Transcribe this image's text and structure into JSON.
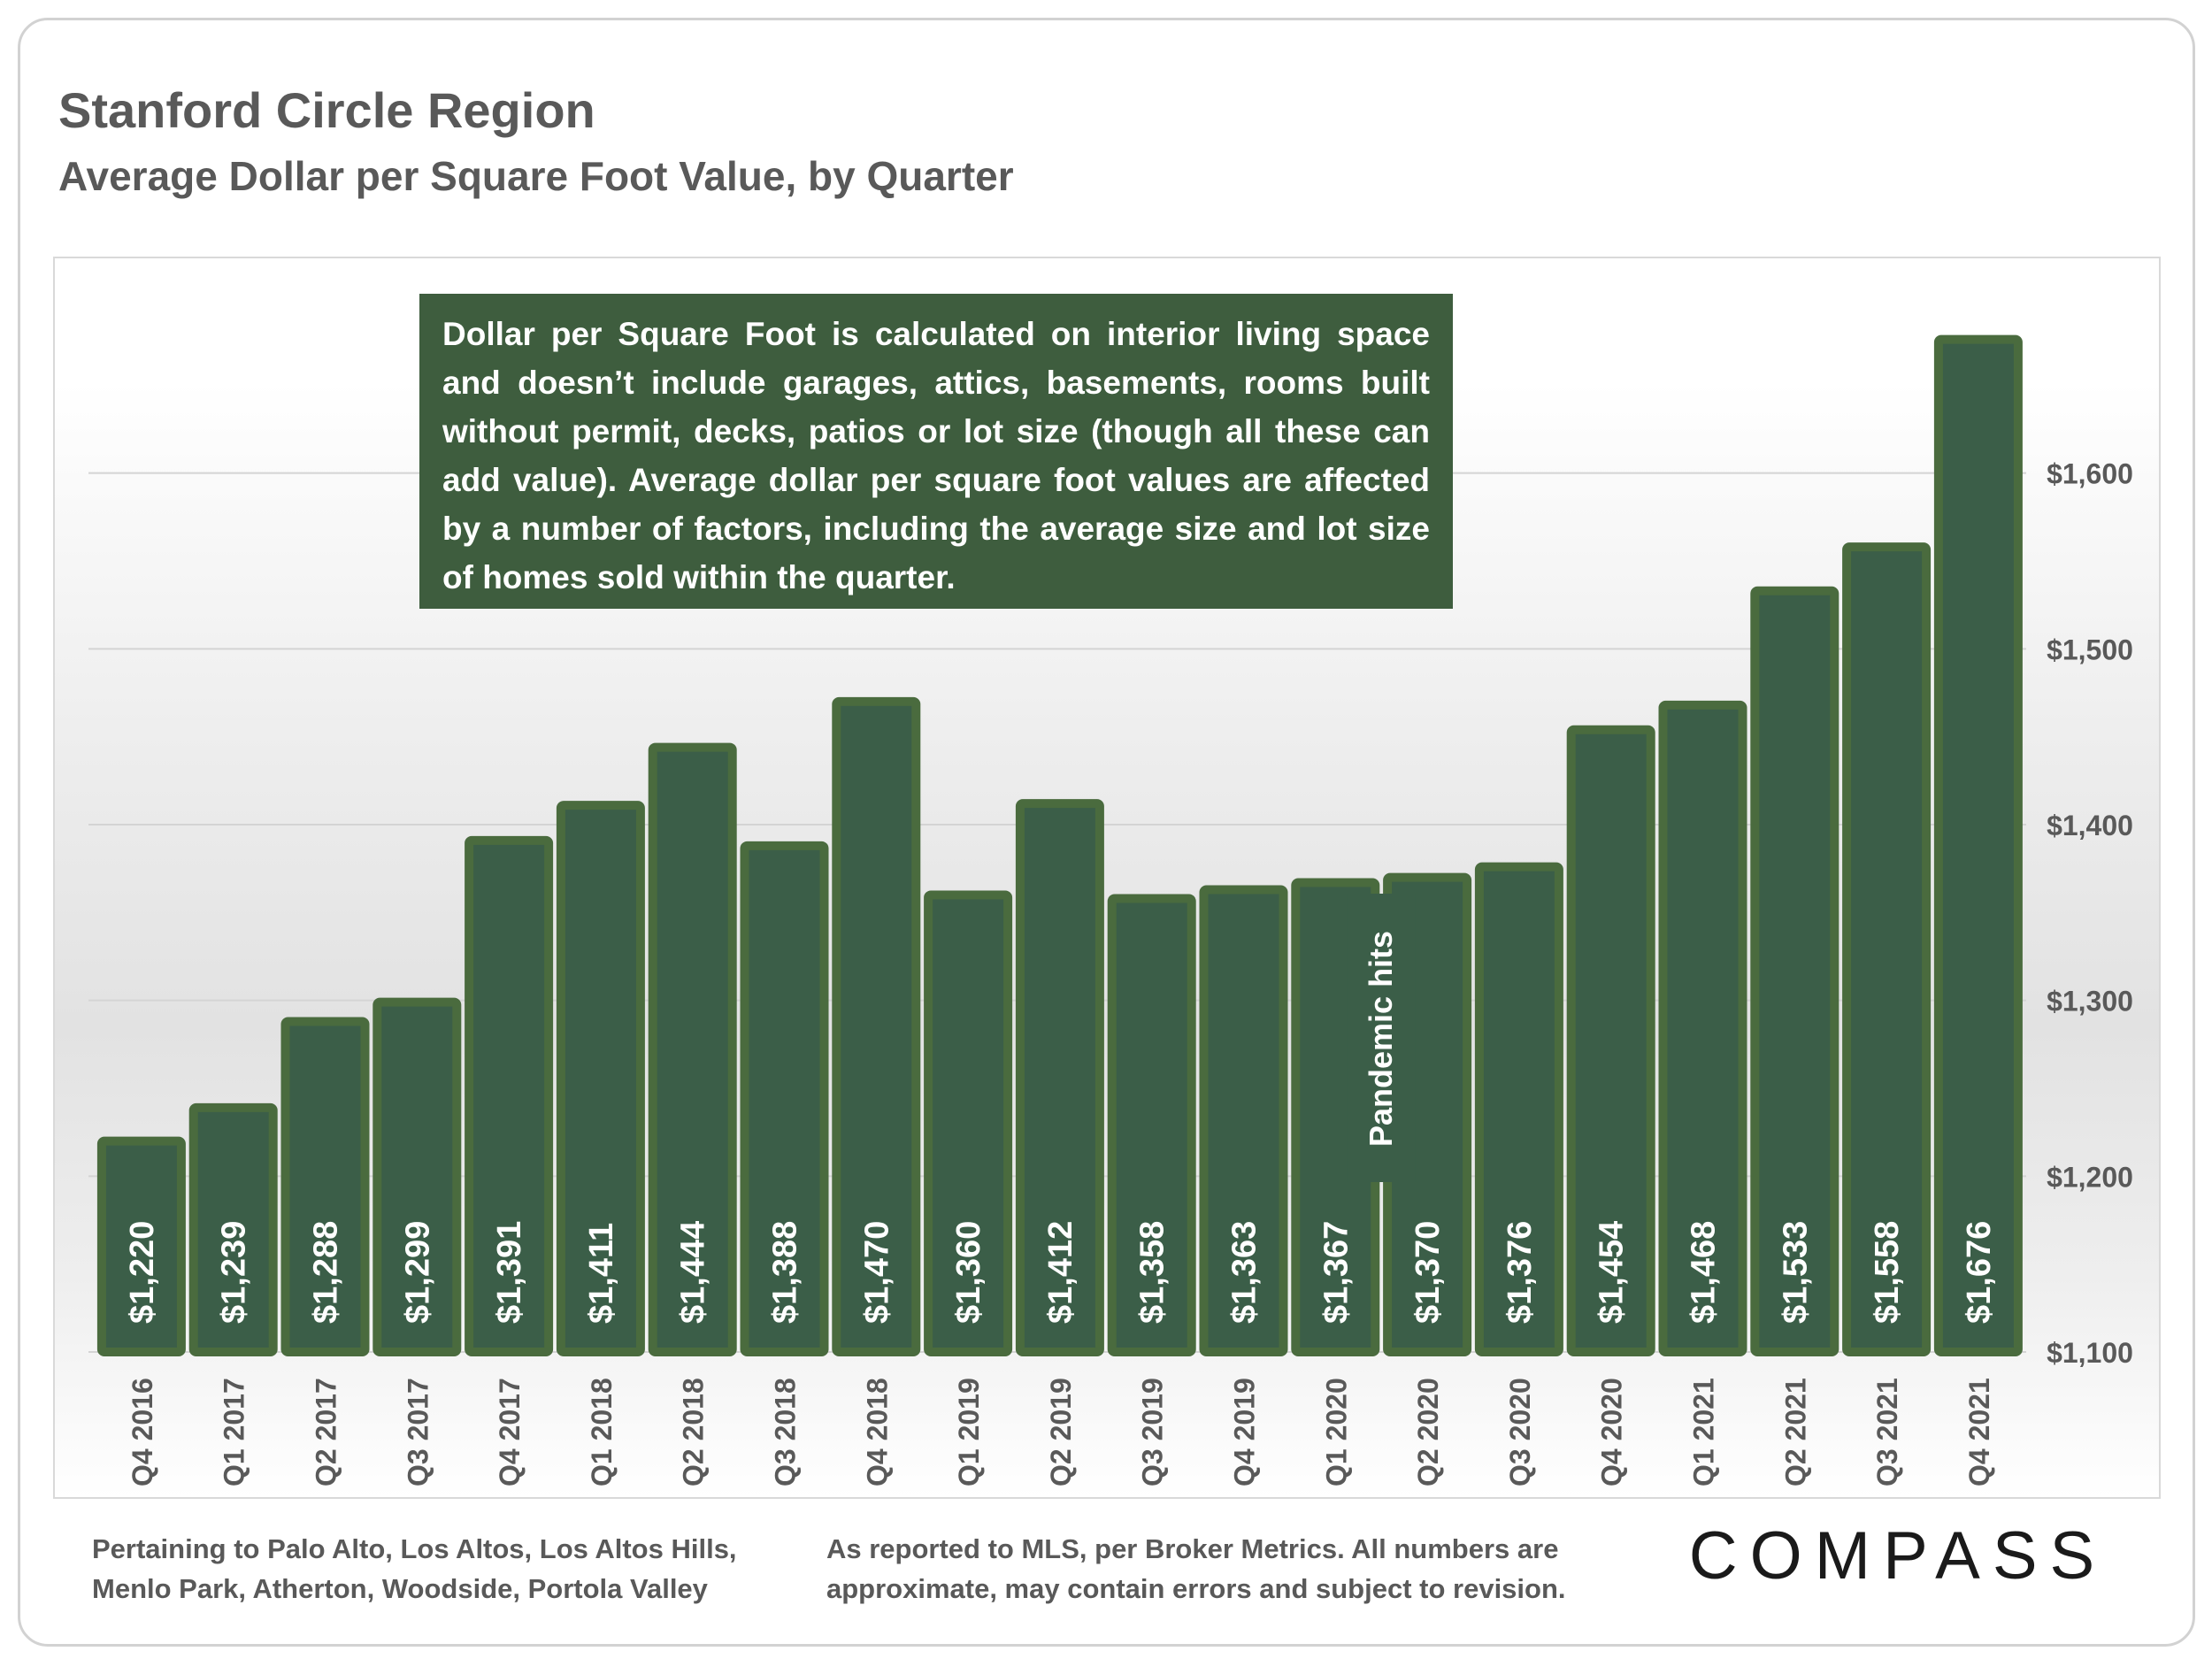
{
  "header": {
    "title": "Stanford Circle Region",
    "subtitle": "Average Dollar per Square Foot Value, by Quarter"
  },
  "note": "Dollar per Square Foot is calculated on interior living space and doesn’t include garages, attics, basements, rooms built without permit, decks, patios or lot size (though all these can add value). Average dollar per square foot values are affected by a number of factors, including the average size and lot size of homes sold within the quarter.",
  "footer": {
    "left_line1": "Pertaining to Palo Alto, Los Altos, Los Altos Hills,",
    "left_line2": "Menlo Park, Atherton, Woodside, Portola Valley",
    "right_line1": "As reported to MLS, per Broker Metrics. All numbers are",
    "right_line2": "approximate, may contain errors and subject to revision."
  },
  "logo_text": "COMPASS",
  "colors": {
    "bar_fill": "#3b5e48",
    "bar_border": "#4a6b3e",
    "note_bg": "#3e5d3e",
    "text_gray": "#595959"
  },
  "chart_data": {
    "type": "bar",
    "title": "Average Dollar per Square Foot Value, by Quarter",
    "xlabel": "",
    "ylabel": "",
    "categories": [
      "Q4 2016",
      "Q1 2017",
      "Q2 2017",
      "Q3 2017",
      "Q4 2017",
      "Q1 2018",
      "Q2 2018",
      "Q3 2018",
      "Q4 2018",
      "Q1 2019",
      "Q2 2019",
      "Q3 2019",
      "Q4 2019",
      "Q1 2020",
      "Q2 2020",
      "Q3 2020",
      "Q4 2020",
      "Q1 2021",
      "Q2 2021",
      "Q3 2021",
      "Q4 2021"
    ],
    "values": [
      1220,
      1239,
      1288,
      1299,
      1391,
      1411,
      1444,
      1388,
      1470,
      1360,
      1412,
      1358,
      1363,
      1367,
      1370,
      1376,
      1454,
      1468,
      1533,
      1558,
      1676
    ],
    "data_labels": [
      "$1,220",
      "$1,239",
      "$1,288",
      "$1,299",
      "$1,391",
      "$1,411",
      "$1,444",
      "$1,388",
      "$1,470",
      "$1,360",
      "$1,412",
      "$1,358",
      "$1,363",
      "$1,367",
      "$1,370",
      "$1,376",
      "$1,454",
      "$1,468",
      "$1,533",
      "$1,558",
      "$1,676"
    ],
    "ylim": [
      1100,
      1700
    ],
    "yticks": [
      1100,
      1200,
      1300,
      1400,
      1500,
      1600
    ],
    "ytick_labels": [
      "$1,100",
      "$1,200",
      "$1,300",
      "$1,400",
      "$1,500",
      "$1,600"
    ],
    "y_axis_position": "right",
    "grid": true,
    "legend": "none",
    "annotation": {
      "text": "Pandemic hits",
      "between": [
        "Q1 2020",
        "Q2 2020"
      ]
    }
  }
}
